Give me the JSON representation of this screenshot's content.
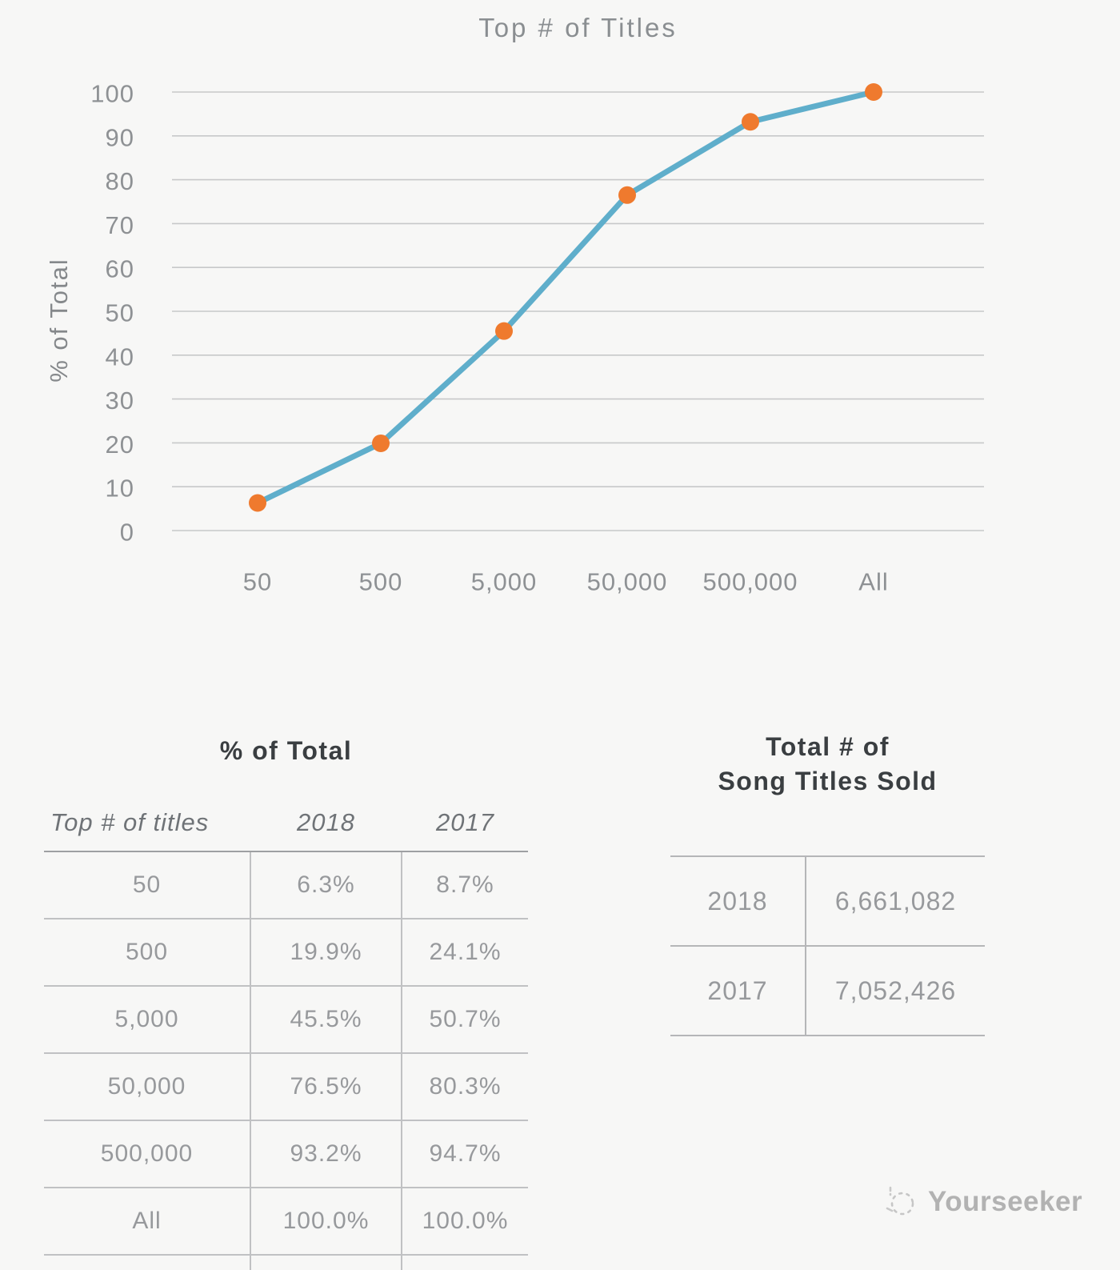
{
  "chart_data": {
    "type": "line",
    "title": "Top # of Titles",
    "ylabel": "% of Total",
    "xlabel": "",
    "categories": [
      "50",
      "500",
      "5,000",
      "50,000",
      "500,000",
      "All"
    ],
    "series": [
      {
        "name": "2018",
        "values": [
          6.3,
          19.9,
          45.5,
          76.5,
          93.2,
          100.0
        ]
      }
    ],
    "ylim": [
      0,
      100
    ],
    "ytick_step": 10,
    "grid": "horizontal",
    "legend": "none",
    "colors": {
      "line": "#5faecb",
      "marker": "#ef7a2e",
      "gridline": "#c7c8c9",
      "tick_text": "#8e9194"
    }
  },
  "left_table": {
    "title": "% of Total",
    "headers": [
      "Top # of titles",
      "2018",
      "2017"
    ],
    "rows": [
      [
        "50",
        "6.3%",
        "8.7%"
      ],
      [
        "500",
        "19.9%",
        "24.1%"
      ],
      [
        "5,000",
        "45.5%",
        "50.7%"
      ],
      [
        "50,000",
        "76.5%",
        "80.3%"
      ],
      [
        "500,000",
        "93.2%",
        "94.7%"
      ],
      [
        "All",
        "100.0%",
        "100.0%"
      ]
    ]
  },
  "right_table": {
    "title_line1": "Total # of",
    "title_line2": "Song Titles Sold",
    "rows": [
      [
        "2018",
        "6,661,082"
      ],
      [
        "2017",
        "7,052,426"
      ]
    ]
  },
  "watermark": {
    "label": "Yourseeker"
  }
}
